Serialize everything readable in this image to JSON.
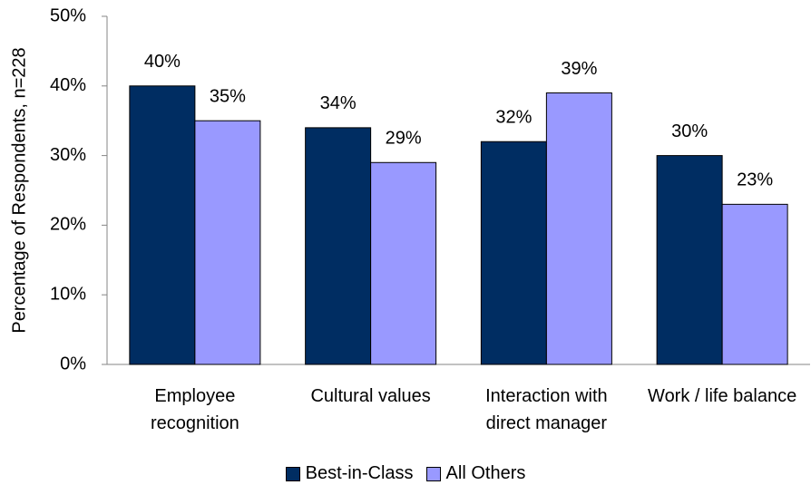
{
  "chart_data": {
    "type": "bar",
    "ylabel": "Percentage of Respondents, n=228",
    "categories": [
      "Employee recognition",
      "Cultural values",
      "Interaction with direct manager",
      "Work / life balance"
    ],
    "series": [
      {
        "name": "Best-in-Class",
        "color": "#002d62",
        "values": [
          40,
          34,
          32,
          30
        ],
        "value_labels": [
          "40%",
          "34%",
          "32%",
          "30%"
        ]
      },
      {
        "name": "All Others",
        "color": "#9999ff",
        "values": [
          35,
          29,
          39,
          23
        ],
        "value_labels": [
          "35%",
          "29%",
          "39%",
          "23%"
        ]
      }
    ],
    "ylim": [
      0,
      50
    ],
    "yticks": [
      {
        "value": 0,
        "label": "0%"
      },
      {
        "value": 10,
        "label": "10%"
      },
      {
        "value": 20,
        "label": "20%"
      },
      {
        "value": 30,
        "label": "30%"
      },
      {
        "value": 40,
        "label": "40%"
      },
      {
        "value": 50,
        "label": "50%"
      }
    ],
    "grid": false,
    "legend": "bottom"
  }
}
